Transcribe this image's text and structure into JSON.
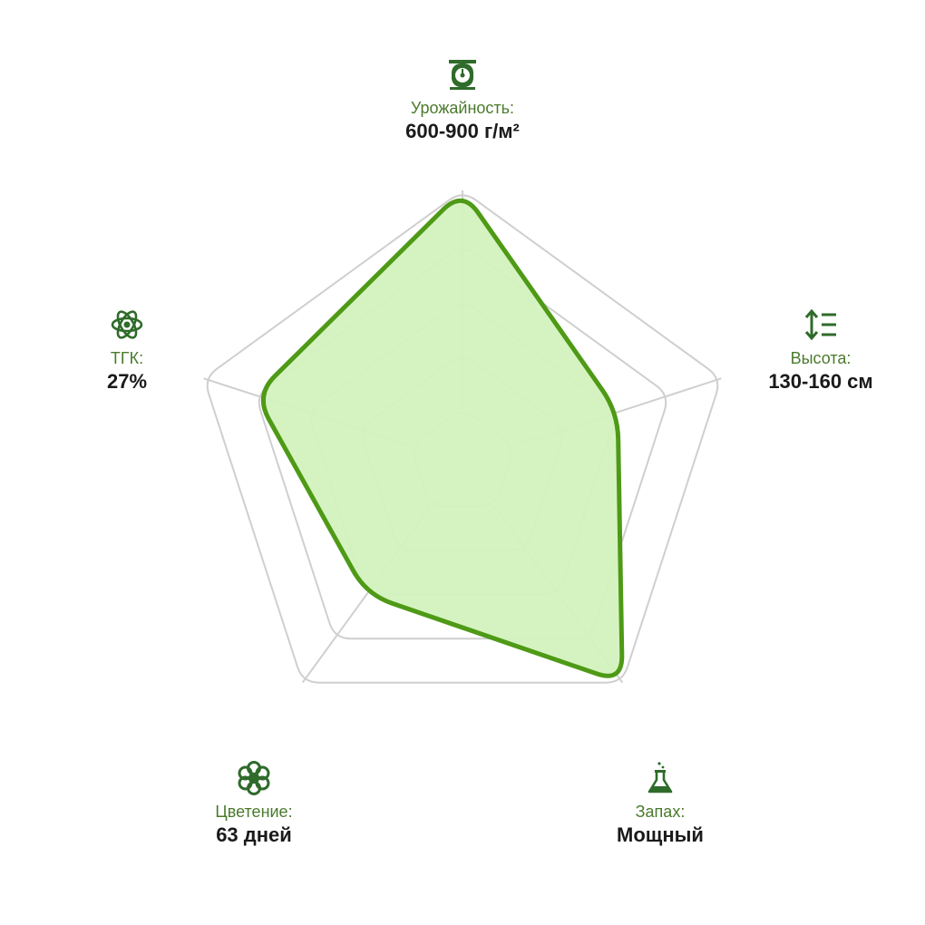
{
  "chart_data": {
    "type": "radar",
    "axes": [
      {
        "key": "yield",
        "label": "Урожайность:",
        "value_text": "600-900 г/м²",
        "icon": "scale-icon"
      },
      {
        "key": "height",
        "label": "Высота:",
        "value_text": "130-160 см",
        "icon": "height-arrows-icon"
      },
      {
        "key": "smell",
        "label": "Запах:",
        "value_text": "Мощный",
        "icon": "flask-icon"
      },
      {
        "key": "bloom",
        "label": "Цветение:",
        "value_text": "63 дней",
        "icon": "flower-icon"
      },
      {
        "key": "thc",
        "label": "ТГК:",
        "value_text": "27%",
        "icon": "atom-icon"
      }
    ],
    "levels": 5,
    "max": 5,
    "values": [
      5,
      3,
      5,
      3,
      4
    ],
    "colors": {
      "fill": "#d3f2bd",
      "stroke": "#4e9a16",
      "grid": "#cfcfcf",
      "icon": "#2f6b2a"
    }
  }
}
